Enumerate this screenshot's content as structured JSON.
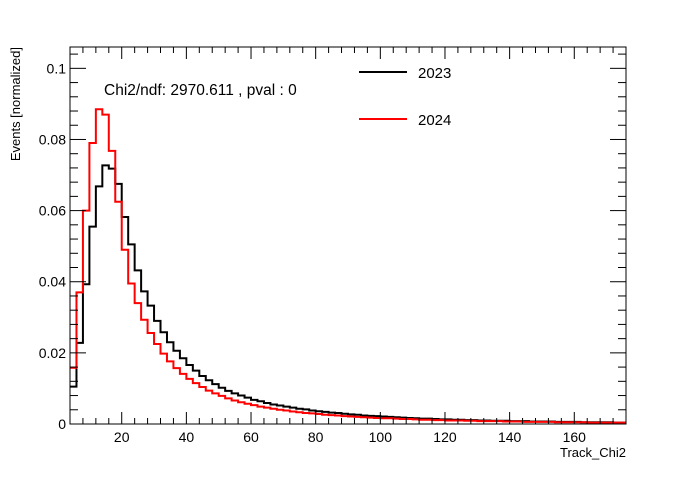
{
  "chart_data": {
    "type": "histogram",
    "title": "",
    "xlabel": "Track_Chi2",
    "ylabel": "Events [normalized]",
    "xlim": [
      4,
      176
    ],
    "ylim": [
      0,
      0.106
    ],
    "xticks": [
      20,
      40,
      60,
      80,
      100,
      120,
      140,
      160
    ],
    "yticks": [
      0,
      0.02,
      0.04,
      0.06,
      0.08,
      0.1
    ],
    "xtick_labels": [
      "20",
      "40",
      "60",
      "80",
      "100",
      "120",
      "140",
      "160"
    ],
    "ytick_labels": [
      "0",
      "0.02",
      "0.04",
      "0.06",
      "0.08",
      "0.1"
    ],
    "bin_edges_start": 4,
    "bin_width": 2,
    "annotation": "Chi2/ndf: 2970.611 , pval : 0",
    "grid": false,
    "legend_position": "top-right",
    "series": [
      {
        "name": "2023",
        "color": "#000000",
        "values": [
          0.0105,
          0.0228,
          0.0393,
          0.0555,
          0.0668,
          0.0727,
          0.0718,
          0.0675,
          0.0582,
          0.0505,
          0.0432,
          0.0373,
          0.0333,
          0.029,
          0.0258,
          0.023,
          0.0206,
          0.0185,
          0.0166,
          0.015,
          0.0135,
          0.0123,
          0.0112,
          0.0102,
          0.0093,
          0.0086,
          0.008,
          0.0074,
          0.0068,
          0.0064,
          0.0059,
          0.0055,
          0.0052,
          0.0049,
          0.0046,
          0.0043,
          0.0041,
          0.0038,
          0.0036,
          0.0034,
          0.0032,
          0.0031,
          0.0029,
          0.0027,
          0.0026,
          0.0024,
          0.0023,
          0.0022,
          0.0021,
          0.002,
          0.0019,
          0.0018,
          0.0017,
          0.0016,
          0.0015,
          0.0015,
          0.0014,
          0.0013,
          0.0013,
          0.0012,
          0.0012,
          0.0011,
          0.0011,
          0.001,
          0.001,
          0.0009,
          0.0009,
          0.0009,
          0.0008,
          0.0008,
          0.0008,
          0.0007,
          0.0007,
          0.0007,
          0.0007,
          0.0006,
          0.0006,
          0.0006,
          0.0006,
          0.0005,
          0.0005,
          0.0005,
          0.0005,
          0.0005,
          0.0004,
          0.0004
        ]
      },
      {
        "name": "2024",
        "color": "#ff0000",
        "values": [
          0.0158,
          0.037,
          0.06,
          0.079,
          0.0885,
          0.087,
          0.0768,
          0.0625,
          0.049,
          0.0395,
          0.034,
          0.0293,
          0.0256,
          0.0225,
          0.0198,
          0.0176,
          0.0157,
          0.0141,
          0.0127,
          0.0115,
          0.0104,
          0.0094,
          0.0086,
          0.0079,
          0.0072,
          0.0066,
          0.0061,
          0.0057,
          0.0053,
          0.0049,
          0.0046,
          0.0043,
          0.004,
          0.0038,
          0.0035,
          0.0033,
          0.0031,
          0.003,
          0.0028,
          0.0026,
          0.0025,
          0.0024,
          0.0022,
          0.0021,
          0.002,
          0.0019,
          0.0018,
          0.0017,
          0.0016,
          0.0016,
          0.0015,
          0.0014,
          0.0014,
          0.0013,
          0.0012,
          0.0012,
          0.0011,
          0.0011,
          0.001,
          0.001,
          0.001,
          0.0009,
          0.0009,
          0.0008,
          0.0008,
          0.0008,
          0.0008,
          0.0007,
          0.0007,
          0.0007,
          0.0006,
          0.0006,
          0.0006,
          0.0006,
          0.0006,
          0.0005,
          0.0005,
          0.0005,
          0.0005,
          0.0005,
          0.0004,
          0.0004,
          0.0004,
          0.0004,
          0.0004,
          0.0004
        ]
      }
    ]
  }
}
